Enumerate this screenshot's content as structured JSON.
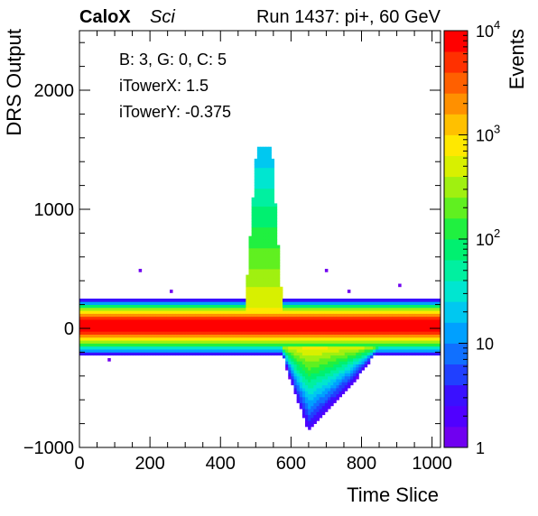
{
  "header": {
    "experiment": "CaloX",
    "detector": "Sci",
    "run_info": "Run 1437: pi+, 60 GeV"
  },
  "annotations": {
    "line1": "B: 3, G: 0, C: 5",
    "line2": "iTowerX: 1.5",
    "line3": "iTowerY: -0.375"
  },
  "chart_data": {
    "type": "heatmap",
    "title": "",
    "xlabel": "Time Slice",
    "ylabel": "DRS Output",
    "zlabel": "Events",
    "xlim": [
      0,
      1024
    ],
    "ylim": [
      -1000,
      2500
    ],
    "zlim": [
      1,
      10000
    ],
    "z_scale": "log",
    "x_ticks": [
      0,
      200,
      400,
      600,
      800,
      1000
    ],
    "x_tick_labels": [
      "0",
      "200",
      "400",
      "600",
      "800",
      "1000"
    ],
    "y_ticks": [
      -1000,
      0,
      1000,
      2000
    ],
    "y_tick_labels": [
      "−1000",
      "0",
      "1000",
      "2000"
    ],
    "z_ticks": [
      1,
      10,
      100,
      1000,
      10000
    ],
    "z_tick_labels": [
      {
        "base": "1",
        "exp": ""
      },
      {
        "base": "10",
        "exp": ""
      },
      {
        "base": "10",
        "exp": "2"
      },
      {
        "base": "10",
        "exp": "3"
      },
      {
        "base": "10",
        "exp": "4"
      }
    ],
    "grid": false,
    "colorbar": "right",
    "palette": [
      "#7000f0",
      "#5000ff",
      "#3a10ff",
      "#2040ff",
      "#1070ff",
      "#00a0ff",
      "#00c8f0",
      "#00e6d0",
      "#00f0a0",
      "#00f070",
      "#20f040",
      "#60f020",
      "#a0f010",
      "#d8f000",
      "#ffe800",
      "#ffc000",
      "#ff9000",
      "#ff6000",
      "#ff3000",
      "#ff0000"
    ],
    "features": {
      "baseline": {
        "y_center": 20,
        "y_min": -230,
        "y_max": 250,
        "peak_count": 10000
      },
      "positive_pulse": {
        "x_start": 465,
        "x_peak": 525,
        "x_end": 580,
        "y_max": 1520
      },
      "negative_pulse": {
        "x_start": 560,
        "x_min": 650,
        "x_end": 880,
        "y_min": -860
      },
      "outlier_spikes_y_max": 530
    }
  }
}
